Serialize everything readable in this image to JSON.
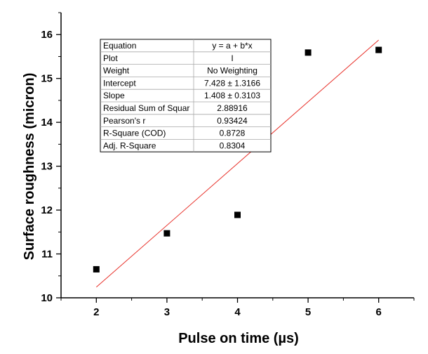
{
  "chart_data": {
    "type": "scatter",
    "title": "",
    "xlabel": "Pulse on time (µs)",
    "ylabel": "Surface roughness (micron)",
    "xlim": [
      1.5,
      6.5
    ],
    "ylim": [
      10,
      16.5
    ],
    "x_ticks": [
      2,
      3,
      4,
      5,
      6
    ],
    "y_ticks": [
      10,
      11,
      12,
      13,
      14,
      15,
      16
    ],
    "grid": false,
    "series": [
      {
        "x": [
          2,
          3,
          4,
          5,
          6
        ],
        "y": [
          10.65,
          11.47,
          11.89,
          15.59,
          15.65
        ],
        "marker": "square",
        "color": "#000000"
      }
    ],
    "fit_line": {
      "x": [
        2,
        6
      ],
      "y": [
        10.244,
        15.876
      ],
      "color": "#e8312a"
    },
    "fit_table": [
      [
        "Equation",
        "y = a + b*x"
      ],
      [
        "Plot",
        "I"
      ],
      [
        "Weight",
        "No Weighting"
      ],
      [
        "Intercept",
        "7.428 ± 1.3166"
      ],
      [
        "Slope",
        "1.408 ± 0.3103"
      ],
      [
        "Residual Sum of Squar",
        "2.88916"
      ],
      [
        "Pearson's r",
        "0.93424"
      ],
      [
        "R-Square (COD)",
        "0.8728"
      ],
      [
        "Adj. R-Square",
        "0.8304"
      ]
    ]
  }
}
